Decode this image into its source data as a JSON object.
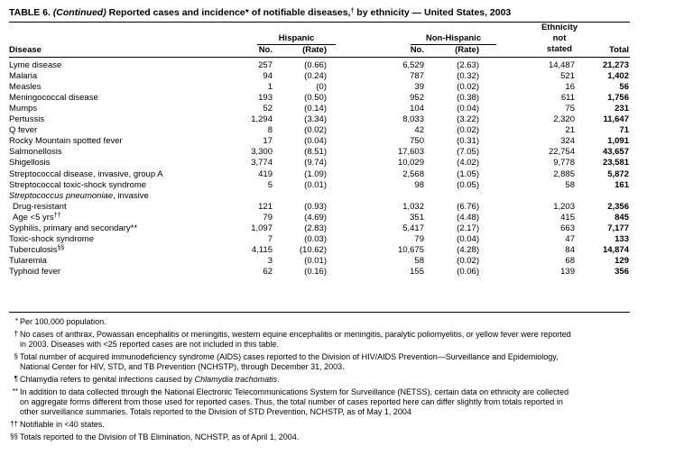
{
  "title": [
    "TABLE 6. ",
    {
      "italic": "(Continued)"
    },
    " Reported cases and incidence* of notifiable diseases,",
    {
      "sup": "†"
    },
    " by ethnicity — United States, 2003"
  ],
  "header": {
    "groups": [
      "Hispanic",
      "Non-Hispanic"
    ],
    "not_stated": [
      "Ethnicity",
      "not",
      "stated"
    ],
    "columns": [
      "Disease",
      "No.",
      "(Rate)",
      "No.",
      "(Rate)",
      "Total"
    ]
  },
  "rows": [
    {
      "disease": "Lyme disease",
      "values": [
        "257",
        "(0.66)",
        "6,529",
        "(2.63)",
        "14,487",
        "21,273"
      ]
    },
    {
      "disease": "Malaria",
      "values": [
        "94",
        "(0.24)",
        "787",
        "(0.32)",
        "521",
        "1,402"
      ]
    },
    {
      "disease": "Measles",
      "values": [
        "1",
        "(0)",
        "39",
        "(0.02)",
        "16",
        "56"
      ]
    },
    {
      "disease": "Meningococcal disease",
      "values": [
        "193",
        "(0.50)",
        "952",
        "(0.38)",
        "611",
        "1,756"
      ]
    },
    {
      "disease": "Mumps",
      "values": [
        "52",
        "(0.14)",
        "104",
        "(0.04)",
        "75",
        "231"
      ]
    },
    {
      "disease": "Pertussis",
      "values": [
        "1,294",
        "(3.34)",
        "8,033",
        "(3.22)",
        "2,320",
        "11,647"
      ]
    },
    {
      "disease": "Q fever",
      "values": [
        "8",
        "(0.02)",
        "42",
        "(0.02)",
        "21",
        "71"
      ]
    },
    {
      "disease": "Rocky Mountain spotted fever",
      "values": [
        "17",
        "(0.04)",
        "750",
        "(0.31)",
        "324",
        "1,091"
      ]
    },
    {
      "disease": "Salmonellosis",
      "values": [
        "3,300",
        "(8.51)",
        "17,603",
        "(7.05)",
        "22,754",
        "43,657"
      ]
    },
    {
      "disease": "Shigellosis",
      "values": [
        "3,774",
        "(9.74)",
        "10,029",
        "(4.02)",
        "9,778",
        "23,581"
      ]
    },
    {
      "disease": "Streptococcal disease, invasive, group A",
      "values": [
        "419",
        "(1.09)",
        "2,568",
        "(1.05)",
        "2,885",
        "5,872"
      ]
    },
    {
      "disease": "Streptococcal toxic-shock syndrome",
      "values": [
        "5",
        "(0.01)",
        "98",
        "(0.05)",
        "58",
        "161"
      ]
    },
    {
      "disease": [
        {
          "italic": "Streptococcus pneumoniae"
        },
        ", invasive"
      ]
    },
    {
      "disease": "Drug-resistant",
      "indent": true,
      "values": [
        "121",
        "(0.93)",
        "1,032",
        "(6.76)",
        "1,203",
        "2,356"
      ]
    },
    {
      "disease": [
        "Age <5 yrs",
        {
          "sup": "††"
        }
      ],
      "indent": true,
      "values": [
        "79",
        "(4.69)",
        "351",
        "(4.48)",
        "415",
        "845"
      ]
    },
    {
      "disease": "Syphilis, primary and secondary**",
      "values": [
        "1,097",
        "(2.83)",
        "5,417",
        "(2.17)",
        "663",
        "7,177"
      ]
    },
    {
      "disease": "Toxic-shock syndrome",
      "values": [
        "7",
        "(0.03)",
        "79",
        "(0.04)",
        "47",
        "133"
      ]
    },
    {
      "disease": [
        "Tuberculosis",
        {
          "sup": "§§"
        }
      ],
      "values": [
        "4,115",
        "(10.62)",
        "10,675",
        "(4.28)",
        "84",
        "14,874"
      ]
    },
    {
      "disease": "Tularemia",
      "values": [
        "3",
        "(0.01)",
        "58",
        "(0.02)",
        "68",
        "129"
      ]
    },
    {
      "disease": "Typhoid fever",
      "values": [
        "62",
        "(0.16)",
        "155",
        "(0.06)",
        "139",
        "356"
      ]
    }
  ],
  "footnotes": [
    {
      "mark": "*",
      "lines": [
        "Per 100,000 population."
      ]
    },
    {
      "mark": "†",
      "lines": [
        "No cases of anthrax, Powassan encephalitis or meningitis, western equine encephalitis or meningitis, paralytic poliomyelitis, or yellow fever were reported",
        "in 2003. Diseases with <25 reported cases are not included in this table."
      ]
    },
    {
      "mark": "§",
      "lines": [
        "Total number of acquired immunodeficiency syndrome (AIDS) cases reported to the Division of HIV/AIDS Prevention—Surveillance and Epidemiology,",
        "National Center for HIV, STD, and TB Prevention (NCHSTP), through December 31, 2003."
      ]
    },
    {
      "mark": "¶",
      "lines": [
        [
          "Chlamydia refers to genital infections caused by ",
          {
            "italic": "Chlamydia trachomatis"
          },
          "."
        ]
      ]
    },
    {
      "mark": "**",
      "lines": [
        "In addition to data collected through the National Electronic Telecommunications System for Surveillance (NETSS), certain data on ethnicity are collected",
        "on aggregate forms different from those used for reported cases. Thus, the total number of cases reported here can differ slightly from totals reported in",
        "other surveillance summaries. Totals reported to the Division of STD Prevention, NCHSTP, as of May 1, 2004"
      ]
    },
    {
      "mark": "††",
      "lines": [
        "Notifiable in <40 states."
      ]
    },
    {
      "mark": "§§",
      "lines": [
        "Totals reported to the Division of TB Elimination, NCHSTP, as of April 1, 2004."
      ]
    }
  ]
}
